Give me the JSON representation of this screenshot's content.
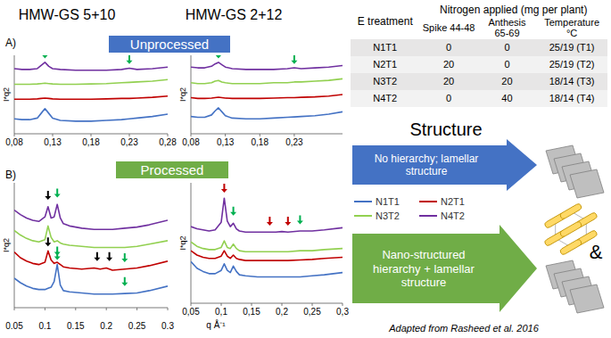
{
  "columns": [
    "HMW-GS 5+10",
    "HMW-GS 2+12"
  ],
  "panels": [
    {
      "label": "A)",
      "banner": "Unprocessed"
    },
    {
      "label": "B)",
      "banner": "Processed"
    }
  ],
  "chart_data": [
    {
      "type": "line",
      "y_label": "I*q2",
      "tick_labels": "x",
      "x": [
        0.08,
        0.09,
        0.1,
        0.11,
        0.115,
        0.12,
        0.125,
        0.13,
        0.14,
        0.16,
        0.18,
        0.2,
        0.22,
        0.23,
        0.24,
        0.26,
        0.28
      ],
      "xlim": [
        0.08,
        0.28
      ],
      "xticks": [
        {
          "value": 0.08,
          "label": "0,08"
        },
        {
          "value": 0.13,
          "label": "0,13"
        },
        {
          "value": 0.18,
          "label": "0,18"
        },
        {
          "value": 0.23,
          "label": "0,23"
        },
        {
          "value": 0.28,
          "label": "0,28"
        }
      ],
      "ylim": [
        0,
        10
      ],
      "series": [
        {
          "name": "N1T1",
          "color": "#4472c4",
          "values": [
            1.9,
            1.8,
            1.8,
            2.0,
            2.6,
            3.2,
            2.6,
            2.0,
            1.7,
            1.6,
            1.6,
            1.7,
            1.8,
            1.9,
            2.0,
            2.2,
            2.5
          ]
        },
        {
          "name": "N2T1",
          "color": "#c00000",
          "values": [
            4.4,
            4.4,
            4.4,
            4.45,
            4.5,
            4.55,
            4.5,
            4.45,
            4.4,
            4.4,
            4.4,
            4.45,
            4.5,
            4.5,
            4.55,
            4.65,
            4.8
          ]
        },
        {
          "name": "N3T2",
          "color": "#92d050",
          "values": [
            6.3,
            6.3,
            6.3,
            6.35,
            6.4,
            6.45,
            6.4,
            6.35,
            6.3,
            6.3,
            6.35,
            6.4,
            6.5,
            6.55,
            6.6,
            6.7,
            6.9
          ]
        },
        {
          "name": "N4T2",
          "color": "#7030a0",
          "values": [
            8.3,
            8.2,
            8.2,
            8.3,
            8.7,
            9.1,
            8.6,
            8.3,
            8.2,
            8.1,
            8.1,
            8.1,
            8.2,
            8.35,
            8.2,
            8.3,
            8.5
          ]
        }
      ],
      "arrows": [
        {
          "x": 0.12,
          "y": 9.6,
          "color": "#00b050"
        },
        {
          "x": 0.23,
          "y": 8.9,
          "color": "#00b050"
        }
      ]
    },
    {
      "type": "line",
      "y_label": "I*q2",
      "tick_labels": "x",
      "x": [
        0.08,
        0.09,
        0.1,
        0.11,
        0.115,
        0.12,
        0.125,
        0.13,
        0.14,
        0.16,
        0.18,
        0.2,
        0.22,
        0.23,
        0.24,
        0.26,
        0.28,
        0.3
      ],
      "xlim": [
        0.08,
        0.3
      ],
      "xticks": [
        {
          "value": 0.08,
          "label": "0,08"
        },
        {
          "value": 0.13,
          "label": "0,13"
        },
        {
          "value": 0.18,
          "label": "0,18"
        },
        {
          "value": 0.23,
          "label": "0,23"
        }
      ],
      "ylim": [
        0,
        10
      ],
      "series": [
        {
          "name": "N1T1",
          "color": "#4472c4",
          "values": [
            2.2,
            2.1,
            2.1,
            2.4,
            2.9,
            3.3,
            2.8,
            2.3,
            2.0,
            1.9,
            1.9,
            2.0,
            2.1,
            2.15,
            2.2,
            2.3,
            2.5,
            2.8
          ]
        },
        {
          "name": "N2T1",
          "color": "#c00000",
          "values": [
            4.6,
            4.5,
            4.5,
            4.55,
            4.6,
            4.65,
            4.6,
            4.55,
            4.5,
            4.5,
            4.5,
            4.55,
            4.6,
            4.6,
            4.65,
            4.7,
            4.8,
            5.0
          ]
        },
        {
          "name": "N3T2",
          "color": "#92d050",
          "values": [
            6.5,
            6.4,
            6.4,
            6.5,
            6.7,
            6.8,
            6.6,
            6.5,
            6.4,
            6.4,
            6.4,
            6.5,
            6.5,
            6.6,
            6.6,
            6.7,
            6.8,
            7.0
          ]
        },
        {
          "name": "N4T2",
          "color": "#7030a0",
          "values": [
            8.5,
            8.4,
            8.4,
            8.6,
            8.9,
            9.1,
            8.8,
            8.5,
            8.3,
            8.2,
            8.2,
            8.2,
            8.3,
            8.4,
            8.3,
            8.4,
            8.5,
            8.7
          ]
        }
      ],
      "arrows": [
        {
          "x": 0.12,
          "y": 9.6,
          "color": "#00b050"
        },
        {
          "x": 0.23,
          "y": 8.9,
          "color": "#00b050"
        }
      ]
    },
    {
      "type": "line",
      "y_label": "I*q2",
      "tick_labels": "x",
      "x": [
        0.05,
        0.06,
        0.07,
        0.08,
        0.09,
        0.1,
        0.105,
        0.11,
        0.115,
        0.12,
        0.125,
        0.13,
        0.14,
        0.16,
        0.18,
        0.19,
        0.2,
        0.21,
        0.23,
        0.25,
        0.27,
        0.3
      ],
      "xlim": [
        0.05,
        0.3
      ],
      "xticks": [
        0.05,
        0.1,
        0.15,
        0.2,
        0.25,
        0.3
      ],
      "ylim": [
        0,
        11
      ],
      "series": [
        {
          "name": "N1T1",
          "color": "#4472c4",
          "values": [
            2.6,
            2.2,
            1.9,
            1.7,
            1.6,
            1.6,
            1.7,
            1.8,
            2.3,
            3.8,
            2.0,
            1.5,
            1.4,
            1.3,
            1.2,
            1.2,
            1.2,
            1.2,
            1.25,
            1.3,
            1.5,
            1.9
          ]
        },
        {
          "name": "N2T1",
          "color": "#c00000",
          "values": [
            4.9,
            4.4,
            4.1,
            3.9,
            3.8,
            4.0,
            5.0,
            4.2,
            3.9,
            4.0,
            3.8,
            3.6,
            3.5,
            3.4,
            3.5,
            3.4,
            3.5,
            3.3,
            3.4,
            3.5,
            3.7,
            4.1
          ]
        },
        {
          "name": "N3T2",
          "color": "#92d050",
          "values": [
            6.8,
            6.4,
            6.1,
            5.9,
            5.8,
            6.0,
            7.2,
            6.2,
            5.8,
            5.9,
            5.7,
            5.6,
            5.5,
            5.4,
            5.3,
            5.3,
            5.3,
            5.3,
            5.3,
            5.4,
            5.6,
            5.9
          ]
        },
        {
          "name": "N4T2",
          "color": "#7030a0",
          "values": [
            8.6,
            8.2,
            7.9,
            7.7,
            7.6,
            8.0,
            8.9,
            7.9,
            8.0,
            9.1,
            7.9,
            7.4,
            7.2,
            7.0,
            6.9,
            6.9,
            6.9,
            6.9,
            7.0,
            7.1,
            7.3,
            7.7
          ]
        }
      ],
      "arrows": [
        {
          "x": 0.105,
          "y": 9.5,
          "color": "#000000"
        },
        {
          "x": 0.12,
          "y": 9.7,
          "color": "#00b050"
        },
        {
          "x": 0.105,
          "y": 5.4,
          "color": "#000000"
        },
        {
          "x": 0.12,
          "y": 4.6,
          "color": "#00b050"
        },
        {
          "x": 0.185,
          "y": 4.1,
          "color": "#000000"
        },
        {
          "x": 0.205,
          "y": 4.1,
          "color": "#000000"
        },
        {
          "x": 0.23,
          "y": 4.0,
          "color": "#00b050"
        },
        {
          "x": 0.12,
          "y": 4.2,
          "color": "#00b050"
        },
        {
          "x": 0.23,
          "y": 1.9,
          "color": "#00b050"
        }
      ]
    },
    {
      "type": "line",
      "y_label": "I*q2",
      "x_label": "q Å⁻¹",
      "tick_labels": "x",
      "x": [
        0.05,
        0.06,
        0.07,
        0.08,
        0.09,
        0.1,
        0.105,
        0.11,
        0.115,
        0.12,
        0.125,
        0.13,
        0.14,
        0.16,
        0.18,
        0.19,
        0.2,
        0.21,
        0.23,
        0.25,
        0.27,
        0.3
      ],
      "xlim": [
        0.05,
        0.3
      ],
      "xticks": [
        {
          "value": 0.05,
          "label": "0,05"
        },
        {
          "value": 0.1,
          "label": "0,1"
        },
        {
          "value": 0.15,
          "label": "0,15"
        },
        {
          "value": 0.2,
          "label": "0,2"
        },
        {
          "value": 0.25,
          "label": "0,25"
        },
        {
          "value": 0.3,
          "label": "0,3"
        }
      ],
      "ylim": [
        0,
        11
      ],
      "series": [
        {
          "name": "N1T1",
          "color": "#4472c4",
          "values": [
            3.8,
            3.2,
            2.9,
            2.7,
            2.7,
            3.0,
            3.6,
            3.0,
            2.8,
            3.4,
            2.9,
            2.6,
            2.5,
            2.4,
            2.4,
            2.4,
            2.4,
            2.4,
            2.4,
            2.5,
            2.6,
            2.8
          ]
        },
        {
          "name": "N2T1",
          "color": "#c00000",
          "values": [
            4.8,
            4.4,
            4.2,
            4.1,
            4.1,
            4.3,
            4.8,
            4.3,
            4.1,
            4.4,
            4.1,
            4.0,
            3.9,
            3.9,
            3.9,
            3.9,
            3.9,
            3.9,
            3.95,
            4.0,
            4.1,
            4.2
          ]
        },
        {
          "name": "N3T2",
          "color": "#92d050",
          "values": [
            5.6,
            5.2,
            5.0,
            4.9,
            4.9,
            5.1,
            5.7,
            5.1,
            5.0,
            5.4,
            5.0,
            4.8,
            4.7,
            4.7,
            4.7,
            4.7,
            4.7,
            4.7,
            4.8,
            4.8,
            4.9,
            5.0
          ]
        },
        {
          "name": "N4T2",
          "color": "#7030a0",
          "values": [
            7.0,
            6.8,
            6.7,
            6.6,
            6.7,
            7.4,
            9.6,
            7.5,
            7.0,
            7.3,
            6.8,
            6.6,
            6.5,
            6.5,
            6.5,
            6.5,
            6.55,
            6.5,
            6.6,
            6.6,
            6.7,
            6.9
          ]
        }
      ],
      "arrows": [
        {
          "x": 0.105,
          "y": 10.1,
          "color": "#c00000"
        },
        {
          "x": 0.12,
          "y": 8.0,
          "color": "#00b050"
        },
        {
          "x": 0.18,
          "y": 7.1,
          "color": "#c00000"
        },
        {
          "x": 0.21,
          "y": 7.1,
          "color": "#c00000"
        },
        {
          "x": 0.23,
          "y": 7.2,
          "color": "#00b050"
        }
      ]
    }
  ],
  "table": {
    "header": [
      "E treatment",
      "Nitrogen applied (mg per plant)"
    ],
    "subheader": [
      "Spike 44-48",
      "Anthesis 65-69",
      "Temperature °C"
    ],
    "rows": [
      [
        "N1T1",
        0,
        0,
        "25/19 (T1)"
      ],
      [
        "N2T1",
        20,
        0,
        "25/19 (T2)"
      ],
      [
        "N3T2",
        20,
        20,
        "18/14 (T3)"
      ],
      [
        "N4T2",
        0,
        40,
        "18/14 (T4)"
      ]
    ]
  },
  "structure_title": "Structure",
  "unprocessed_structure": "No hierarchy; lamellar structure",
  "processed_structure": "Nano-structured hierarchy + lamellar structure",
  "ampersand": "&",
  "source": "Adapted from Rasheed et al. 2016"
}
